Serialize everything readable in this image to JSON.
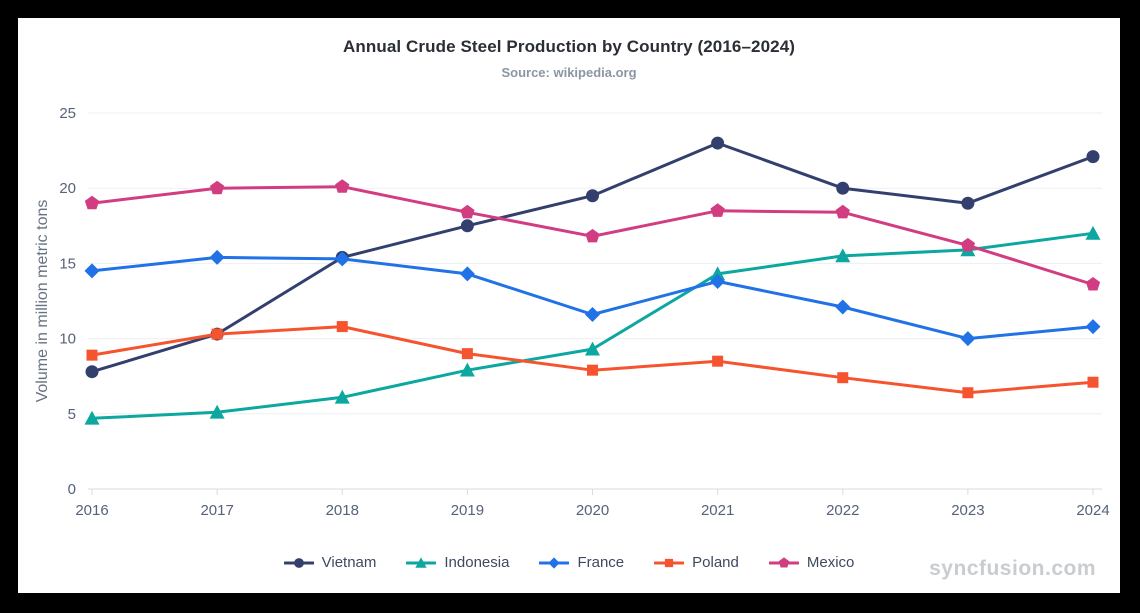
{
  "window": {
    "frame_color": "#000000",
    "canvas_color": "#FFFFFF"
  },
  "watermark": "syncfusion.com",
  "colors": {
    "title": "#2A2E35",
    "subtitle": "#8C95A4",
    "axis_label": "#55627A",
    "axis_title": "#66727F",
    "legend_text": "#3D4A61",
    "gridline": "#EDEFF2",
    "axis_line": "#D8DBE1",
    "watermark": "#C9CCD0"
  },
  "chart_data": {
    "type": "line",
    "title": "Annual Crude Steel Production by Country (2016–2024)",
    "subtitle": "Source: wikipedia.org",
    "xlabel": "",
    "ylabel": "Volume in million metric tons",
    "x": [
      2016,
      2017,
      2018,
      2019,
      2020,
      2021,
      2022,
      2023,
      2024
    ],
    "ylim": [
      0,
      25
    ],
    "yticks": [
      0,
      5,
      10,
      15,
      20,
      25
    ],
    "grid": "horizontal-only",
    "legend_position": "bottom-center",
    "series": [
      {
        "name": "Vietnam",
        "marker": "circle",
        "color": "#33406D",
        "values": [
          7.8,
          10.3,
          15.4,
          17.5,
          19.5,
          23.0,
          20.0,
          19.0,
          22.1
        ]
      },
      {
        "name": "Indonesia",
        "marker": "triangle",
        "color": "#0BA7A0",
        "values": [
          4.7,
          5.1,
          6.1,
          7.9,
          9.3,
          14.3,
          15.5,
          15.9,
          17.0
        ]
      },
      {
        "name": "France",
        "marker": "diamond",
        "color": "#2072E6",
        "values": [
          14.5,
          15.4,
          15.3,
          14.3,
          11.6,
          13.8,
          12.1,
          10.0,
          10.8
        ]
      },
      {
        "name": "Poland",
        "marker": "square",
        "color": "#F6532F",
        "values": [
          8.9,
          10.3,
          10.8,
          9.0,
          7.9,
          8.5,
          7.4,
          6.4,
          7.1
        ]
      },
      {
        "name": "Mexico",
        "marker": "pentagon",
        "color": "#D23D82",
        "values": [
          19.0,
          20.0,
          20.1,
          18.4,
          16.8,
          18.5,
          18.4,
          16.2,
          13.6
        ]
      }
    ]
  }
}
